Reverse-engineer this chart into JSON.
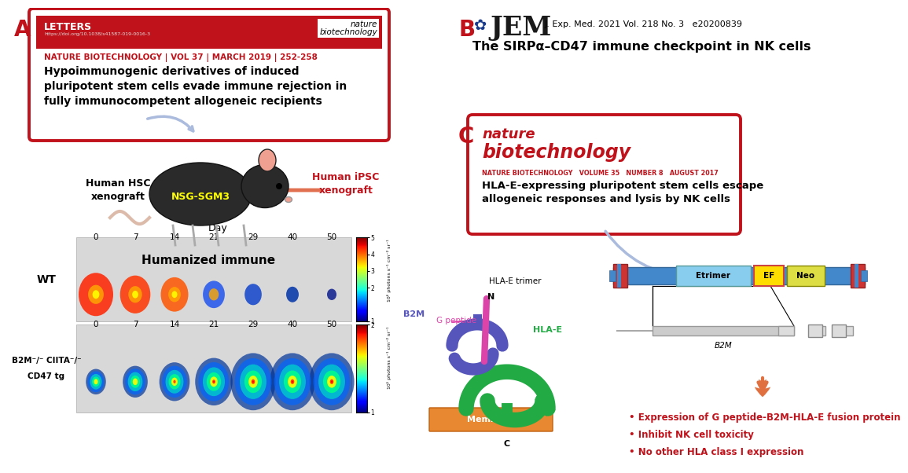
{
  "fig_width": 11.25,
  "fig_height": 5.82,
  "bg_color": "#ffffff",
  "label_A": "A",
  "label_B": "B",
  "label_C": "C",
  "panel_A_box": {
    "letters_text": "LETTERS",
    "doi_text": "https://doi.org/10.1038/s41587-019-0016-3",
    "journal_text": "nature\nbiotechnology",
    "meta_text": "NATURE BIOTECHNOLOGY | VOL 37 | MARCH 2019 | 252-258",
    "meta_color": "#c0121b",
    "title_text": "Hypoimmunogenic derivatives of induced\npluripotent stem cells evade immune rejection in\nfully immunocompetent allogeneic recipients",
    "title_color": "#000000",
    "border_color": "#c0121b",
    "header_bg": "#c0121b"
  },
  "panel_A_diagram": {
    "mouse_label": "NSG-SGM3",
    "mouse_label_color": "#ffff00",
    "left_label": "Human HSC\nxenograft",
    "right_label": "Human iPSC\nxenograft",
    "right_label_color": "#c0121b",
    "bottom_label": "Humanized immune",
    "arrow_color": "#aabbdd"
  },
  "panel_A_imaging": {
    "day_label": "Day",
    "days": [
      "0",
      "7",
      "14",
      "21",
      "29",
      "40",
      "50"
    ],
    "wt_label": "WT",
    "b2m_label1": "B2M⁻/⁻ CIITA⁻/⁻",
    "b2m_label2": "CD47 tg",
    "colorbar1_ticks": [
      "5",
      "4",
      "3",
      "2",
      "1"
    ],
    "colorbar2_ticks": [
      "2",
      "1"
    ],
    "colorbar1_unit": "10⁶ photons s⁻¹ cm⁻² sr⁻¹",
    "colorbar2_unit": "10⁵ photons s⁻¹ cm⁻² sr⁻¹"
  },
  "panel_B": {
    "jem_text": "JEM",
    "meta_text": "J. Exp. Med. 2021 Vol. 218 No. 3   e20200839",
    "title_text": "The SIRPα–CD47 immune checkpoint in NK cells"
  },
  "panel_C_box": {
    "journal_line1": "nature",
    "journal_line2": "biotechnology",
    "meta_text": "NATURE BIOTECHNOLOGY   VOLUME 35   NUMBER 8   AUGUST 2017",
    "title_text": "HLA-E-expressing pluripotent stem cells escape\nallogeneic responses and lysis by NK cells",
    "border_color": "#c0121b"
  },
  "panel_C_diagram": {
    "hla_e_trimer_label": "HLA-E trimer",
    "g_peptide_label": "G peptide",
    "n_label": "N",
    "c_label": "C",
    "b2m_label": "B2M",
    "hla_e_label": "HLA-E",
    "membrane_label": "Membrane",
    "membrane_color": "#e88830",
    "b2m_color": "#5555bb",
    "hla_e_color": "#22aa44",
    "peptide_color": "#dd44aa"
  },
  "panel_C_construct": {
    "main_bar_color": "#4488cc",
    "etrimer_color": "#88ccee",
    "etrimer_label": "Etrimer",
    "ef_color": "#ffdd00",
    "ef_label": "EF",
    "neo_color": "#dddd44",
    "neo_label": "Neo",
    "red_block_color": "#cc3333",
    "b2m_bar_color": "#cccccc",
    "b2m_label": "B2M",
    "arrow_color": "#aabbcc"
  },
  "panel_C_bullets": {
    "bullet1": "Expression of G peptide-B2M-HLA-E fusion protein",
    "bullet2": "Inhibit NK cell toxicity",
    "bullet3": "No other HLA class I expression",
    "bullet_color": "#c0121b"
  }
}
